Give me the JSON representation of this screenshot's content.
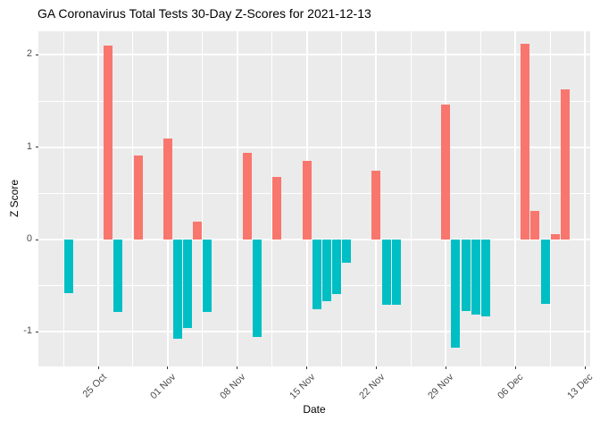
{
  "chart_data": {
    "type": "bar",
    "title": "GA Coronavirus Total Tests 30-Day Z-Scores for 2021-12-13",
    "xlabel": "Date",
    "ylabel": "Z Score",
    "ylim": [
      -1.37,
      2.27
    ],
    "grid": "major and minor white gridlines on gray panel",
    "legend": false,
    "panel_background": "#EBEBEB",
    "grid_color": "#FFFFFF",
    "positive_color": "#F8766D",
    "negative_color": "#00BFC4",
    "axis_text_color": "#4d4d4d",
    "x_ticks": [
      {
        "date": "2021-10-25",
        "label": "25 Oct"
      },
      {
        "date": "2021-11-01",
        "label": "01 Nov"
      },
      {
        "date": "2021-11-08",
        "label": "08 Nov"
      },
      {
        "date": "2021-11-15",
        "label": "15 Nov"
      },
      {
        "date": "2021-11-22",
        "label": "22 Nov"
      },
      {
        "date": "2021-11-29",
        "label": "29 Nov"
      },
      {
        "date": "2021-12-06",
        "label": "06 Dec"
      },
      {
        "date": "2021-12-13",
        "label": "13 Dec"
      }
    ],
    "y_ticks": [
      {
        "value": -1,
        "label": "-1"
      },
      {
        "value": 0,
        "label": "0"
      },
      {
        "value": 1,
        "label": "1"
      },
      {
        "value": 2,
        "label": "2"
      }
    ],
    "y_minor_ticks": [
      -0.5,
      0.5,
      1.5
    ],
    "bars": [
      {
        "date": "2021-10-22",
        "value": -0.58
      },
      {
        "date": "2021-10-26",
        "value": 2.1
      },
      {
        "date": "2021-10-27",
        "value": -0.78
      },
      {
        "date": "2021-10-29",
        "value": 0.91
      },
      {
        "date": "2021-11-01",
        "value": 1.09
      },
      {
        "date": "2021-11-02",
        "value": -1.07
      },
      {
        "date": "2021-11-03",
        "value": -0.96
      },
      {
        "date": "2021-11-04",
        "value": 0.19
      },
      {
        "date": "2021-11-05",
        "value": -0.78
      },
      {
        "date": "2021-11-09",
        "value": 0.94
      },
      {
        "date": "2021-11-10",
        "value": -1.05
      },
      {
        "date": "2021-11-12",
        "value": 0.68
      },
      {
        "date": "2021-11-15",
        "value": 0.85
      },
      {
        "date": "2021-11-16",
        "value": -0.75
      },
      {
        "date": "2021-11-17",
        "value": -0.67
      },
      {
        "date": "2021-11-18",
        "value": -0.59
      },
      {
        "date": "2021-11-19",
        "value": -0.25
      },
      {
        "date": "2021-11-22",
        "value": 0.75
      },
      {
        "date": "2021-11-23",
        "value": -0.71
      },
      {
        "date": "2021-11-24",
        "value": -0.71
      },
      {
        "date": "2021-11-29",
        "value": 1.46
      },
      {
        "date": "2021-11-30",
        "value": -1.17
      },
      {
        "date": "2021-12-01",
        "value": -0.77
      },
      {
        "date": "2021-12-02",
        "value": -0.81
      },
      {
        "date": "2021-12-03",
        "value": -0.83
      },
      {
        "date": "2021-12-07",
        "value": 2.12
      },
      {
        "date": "2021-12-08",
        "value": 0.31
      },
      {
        "date": "2021-12-09",
        "value": -0.7
      },
      {
        "date": "2021-12-10",
        "value": 0.06
      },
      {
        "date": "2021-12-11",
        "value": 1.63
      }
    ]
  }
}
